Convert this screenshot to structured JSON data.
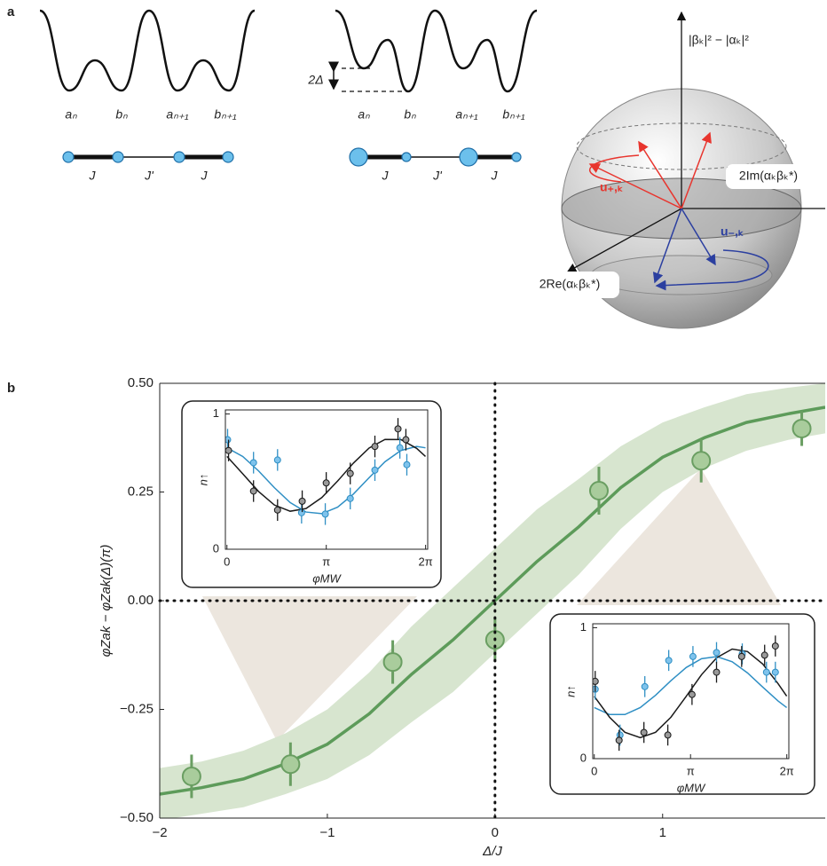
{
  "panel_labels": [
    "a",
    "b"
  ],
  "panel_a": {
    "left": {
      "sites": [
        "aₙ",
        "bₙ",
        "aₙ₊₁",
        "bₙ₊₁"
      ],
      "bonds": [
        "J",
        "J'",
        "J"
      ]
    },
    "middle": {
      "offset": "2Δ",
      "sites": [
        "aₙ",
        "bₙ",
        "aₙ₊₁",
        "bₙ₊₁"
      ],
      "bonds": [
        "J",
        "J'",
        "J"
      ]
    },
    "sphere": {
      "z_axis": "|βₖ|² − |αₖ|²",
      "y_axis": "2Im(αₖβₖ*)",
      "x_axis": "2Re(αₖβₖ*)",
      "u_plus": "u₊,ₖ",
      "u_minus": "u₋,ₖ"
    }
  },
  "chart_data": [
    {
      "type": "scatter",
      "xlabel": "Δ/J",
      "ylabel": "φZak − φZak(Δ)(π)",
      "xlim": [
        -2,
        1.97
      ],
      "ylim": [
        -0.5,
        0.5
      ],
      "xticks": [
        {
          "value": -2,
          "label": "−2"
        },
        {
          "value": -1,
          "label": "−1"
        },
        0,
        1
      ],
      "yticks": [
        {
          "value": -0.5,
          "label": "−0.50"
        },
        {
          "value": -0.25,
          "label": "−0.25"
        },
        {
          "value": 0,
          "label": "0.00"
        },
        {
          "value": 0.25,
          "label": "0.25"
        },
        {
          "value": 0.5,
          "label": "0.50"
        }
      ],
      "reference_lines": {
        "x": 0,
        "y": 0
      },
      "series": [
        {
          "color": "#6a9e62",
          "x": [
            -1.81,
            -1.22,
            -0.61,
            0,
            0.62,
            1.23,
            1.83
          ],
          "values": [
            -0.404,
            -0.376,
            -0.141,
            -0.09,
            0.253,
            0.322,
            0.396
          ],
          "errors": [
            0.05,
            0.05,
            0.05,
            0.05,
            0.055,
            0.05,
            0.04
          ]
        }
      ],
      "fit": {
        "color": "#5d9b5a",
        "band_color": "#d7e5cf",
        "x": [
          -2,
          -1.75,
          -1.5,
          -1.25,
          -1,
          -0.75,
          -0.5,
          -0.25,
          0,
          0.25,
          0.5,
          0.75,
          1,
          1.25,
          1.5,
          1.75,
          1.97
        ],
        "values": [
          -0.445,
          -0.43,
          -0.41,
          -0.375,
          -0.33,
          -0.26,
          -0.17,
          -0.09,
          0,
          0.09,
          0.17,
          0.26,
          0.33,
          0.375,
          0.41,
          0.43,
          0.445
        ],
        "upper": [
          -0.385,
          -0.37,
          -0.345,
          -0.305,
          -0.25,
          -0.165,
          -0.06,
          0.03,
          0.12,
          0.21,
          0.28,
          0.355,
          0.41,
          0.445,
          0.475,
          0.49,
          0.5
        ],
        "lower": [
          -0.505,
          -0.49,
          -0.475,
          -0.445,
          -0.41,
          -0.355,
          -0.28,
          -0.21,
          -0.12,
          -0.03,
          0.06,
          0.165,
          0.25,
          0.305,
          0.345,
          0.37,
          0.385
        ]
      }
    },
    {
      "type": "scatter",
      "xlabel": "φMW",
      "ylabel": "n↑",
      "xlim": [
        -0.05,
        6.35
      ],
      "ylim": [
        0,
        1.03
      ],
      "xticks": [
        0,
        {
          "value": 3.14159,
          "label": "π"
        },
        {
          "value": 6.28318,
          "label": "2π"
        }
      ],
      "yticks": [
        0,
        1
      ],
      "fit_x": [
        0,
        0.5,
        1,
        1.5,
        2,
        2.5,
        3,
        3.5,
        4,
        4.5,
        5,
        5.5,
        6,
        6.28
      ],
      "series": [
        {
          "color": "#2f8fc4",
          "x": [
            0.02,
            0.84,
            1.6,
            2.36,
            3.11,
            3.9,
            4.68,
            5.47,
            5.69
          ],
          "values": [
            0.81,
            0.64,
            0.66,
            0.27,
            0.26,
            0.375,
            0.585,
            0.75,
            0.625
          ],
          "error": 0.08,
          "fit": [
            0.75,
            0.686,
            0.579,
            0.455,
            0.345,
            0.275,
            0.263,
            0.311,
            0.408,
            0.53,
            0.647,
            0.73,
            0.76,
            0.75
          ]
        },
        {
          "color": "#1a1a1a",
          "x": [
            0.05,
            0.84,
            1.6,
            2.38,
            3.14,
            3.9,
            4.68,
            5.41,
            5.66
          ],
          "values": [
            0.73,
            0.43,
            0.29,
            0.355,
            0.49,
            0.56,
            0.76,
            0.89,
            0.81
          ],
          "error": 0.08,
          "fit": [
            0.686,
            0.558,
            0.427,
            0.327,
            0.281,
            0.301,
            0.382,
            0.504,
            0.637,
            0.749,
            0.812,
            0.811,
            0.746,
            0.686
          ]
        }
      ]
    },
    {
      "type": "scatter",
      "xlabel": "φMW",
      "ylabel": "n↑",
      "xlim": [
        -0.05,
        6.35
      ],
      "ylim": [
        0,
        1.03
      ],
      "xticks": [
        0,
        {
          "value": 3.14159,
          "label": "π"
        },
        {
          "value": 6.28318,
          "label": "2π"
        }
      ],
      "yticks": [
        0,
        1
      ],
      "fit_x": [
        0,
        0.5,
        1,
        1.5,
        2,
        2.5,
        3,
        3.5,
        4,
        4.5,
        5,
        5.5,
        6,
        6.28
      ],
      "series": [
        {
          "color": "#2f8fc4",
          "x": [
            0.03,
            0.84,
            1.65,
            2.43,
            3.22,
            3.99,
            4.83,
            5.62,
            5.91
          ],
          "values": [
            0.53,
            0.18,
            0.55,
            0.75,
            0.78,
            0.81,
            0.8,
            0.66,
            0.66
          ],
          "error": 0.08,
          "fit": [
            0.39,
            0.337,
            0.337,
            0.39,
            0.484,
            0.595,
            0.696,
            0.763,
            0.779,
            0.74,
            0.655,
            0.546,
            0.44,
            0.39
          ]
        },
        {
          "color": "#1a1a1a",
          "x": [
            0.03,
            0.81,
            1.62,
            2.4,
            3.19,
            3.99,
            4.81,
            5.56,
            5.91
          ],
          "values": [
            0.59,
            0.14,
            0.2,
            0.18,
            0.49,
            0.66,
            0.78,
            0.79,
            0.86
          ],
          "error": 0.08,
          "fit": [
            0.476,
            0.316,
            0.201,
            0.16,
            0.201,
            0.316,
            0.476,
            0.641,
            0.772,
            0.837,
            0.818,
            0.722,
            0.572,
            0.477
          ]
        }
      ]
    }
  ]
}
